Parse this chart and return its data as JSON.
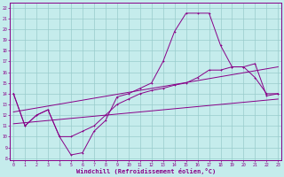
{
  "xlabel": "Windchill (Refroidissement éolien,°C)",
  "xlim": [
    -0.3,
    23.3
  ],
  "ylim": [
    7.8,
    22.5
  ],
  "xticks": [
    0,
    1,
    2,
    3,
    4,
    5,
    6,
    7,
    8,
    9,
    10,
    11,
    12,
    13,
    14,
    15,
    16,
    17,
    18,
    19,
    20,
    21,
    22,
    23
  ],
  "yticks": [
    8,
    9,
    10,
    11,
    12,
    13,
    14,
    15,
    16,
    17,
    18,
    19,
    20,
    21,
    22
  ],
  "bg_color": "#c5ecec",
  "line_color": "#880088",
  "grid_color": "#99cccc",
  "line1_x": [
    0,
    1,
    2,
    3,
    4,
    5,
    6,
    7,
    8,
    9,
    10,
    11,
    12,
    13,
    14,
    15,
    16,
    17,
    18,
    19,
    20,
    21,
    22,
    23
  ],
  "line1_y": [
    14,
    11,
    12,
    12.5,
    10,
    8.3,
    8.5,
    10.5,
    11.5,
    13.7,
    14.0,
    14.5,
    15.0,
    17.0,
    19.8,
    21.5,
    21.5,
    21.5,
    18.5,
    16.5,
    16.5,
    15.5,
    14.0,
    14.0
  ],
  "line2_x": [
    0,
    1,
    2,
    3,
    4,
    5,
    6,
    7,
    8,
    9,
    10,
    11,
    12,
    13,
    14,
    15,
    16,
    17,
    18,
    19,
    20,
    21,
    22,
    23
  ],
  "line2_y": [
    14,
    11,
    12,
    12.5,
    10,
    10.0,
    10.5,
    11.0,
    12.0,
    13.0,
    13.5,
    14.0,
    14.3,
    14.5,
    14.8,
    15.0,
    15.5,
    16.2,
    16.2,
    16.5,
    16.5,
    16.8,
    13.8,
    14.0
  ],
  "line3_x": [
    0,
    23
  ],
  "line3_y": [
    11.2,
    13.5
  ],
  "line4_x": [
    0,
    23
  ],
  "line4_y": [
    12.3,
    16.5
  ]
}
